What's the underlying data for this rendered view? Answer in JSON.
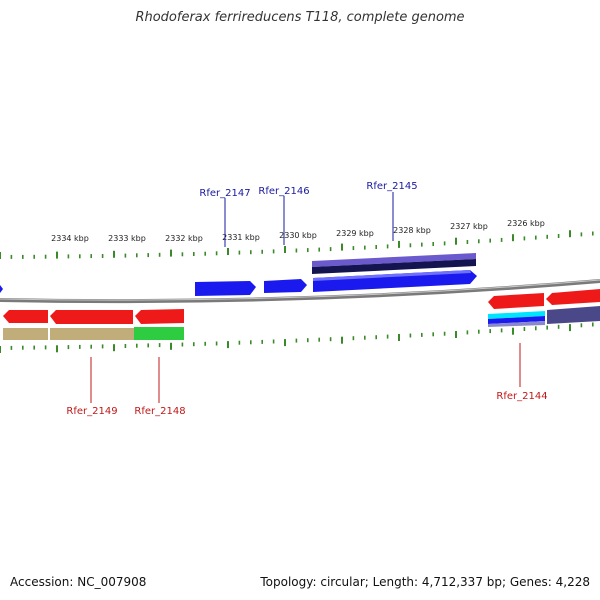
{
  "title": "Rhodoferax ferrireducens T118, complete genome",
  "footer": {
    "accession_label": "Accession:",
    "accession": "NC_007908",
    "topology_text": "Topology: circular; Length: 4,712,337 bp; Genes: 4,228"
  },
  "colors": {
    "forward_gene": "#1a1aee",
    "reverse_gene": "#ee1a1a",
    "forward_label": "#1a1aa0",
    "reverse_label": "#c01818",
    "backbone": "#888888",
    "tick": "#3a8a2a"
  },
  "scale": {
    "unit": "kbp",
    "ticks": [
      "2334 kbp",
      "2333 kbp",
      "2332 kbp",
      "2331 kbp",
      "2330 kbp",
      "2329 kbp",
      "2328 kbp",
      "2327 kbp",
      "2326 kbp"
    ]
  },
  "gene_labels": {
    "forward": [
      "Rfer_2147",
      "Rfer_2146",
      "Rfer_2145"
    ],
    "reverse": [
      "Rfer_2149",
      "Rfer_2148",
      "Rfer_2144"
    ]
  }
}
